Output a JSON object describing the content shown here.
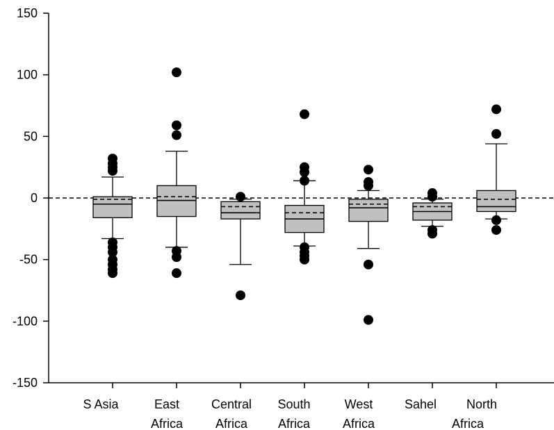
{
  "chart_data": {
    "type": "boxplot",
    "title": "",
    "xlabel": "",
    "ylabel": "",
    "ylim": [
      -150,
      150
    ],
    "yticks": [
      150,
      100,
      50,
      0,
      -50,
      -100,
      -150
    ],
    "ytick_labels": [
      "150",
      "100",
      "50",
      "0",
      "-50",
      "-100",
      "-150"
    ],
    "reference_line": {
      "y": 0,
      "style": "dashed"
    },
    "box_fill_color": "#c0c0c0",
    "outlier_color": "#000000",
    "categories": [
      {
        "lines": [
          "S Asia"
        ],
        "whisker_low": -33,
        "q1": -16,
        "median": -5,
        "mean": -1,
        "q3": 1,
        "whisker_high": 17,
        "outliers": [
          32,
          28,
          25,
          22,
          -36,
          -40,
          -44,
          -50,
          -54,
          -58,
          -61
        ]
      },
      {
        "lines": [
          "East",
          "Africa"
        ],
        "whisker_low": -40,
        "q1": -15,
        "median": -2,
        "mean": 1,
        "q3": 10,
        "whisker_high": 38,
        "outliers": [
          102,
          59,
          51,
          -43,
          -48,
          -61
        ]
      },
      {
        "lines": [
          "Central",
          "Africa"
        ],
        "whisker_low": -54,
        "q1": -17,
        "median": -12,
        "mean": -7,
        "q3": -3,
        "whisker_high": -1,
        "outliers": [
          1,
          -79
        ]
      },
      {
        "lines": [
          "South",
          "Africa"
        ],
        "whisker_low": -39,
        "q1": -28,
        "median": -17,
        "mean": -12,
        "q3": -6,
        "whisker_high": 14,
        "outliers": [
          68,
          25,
          21,
          14,
          -40,
          -44,
          -47,
          -50
        ]
      },
      {
        "lines": [
          "West",
          "Africa"
        ],
        "whisker_low": -41,
        "q1": -19,
        "median": -8,
        "mean": -5,
        "q3": -1,
        "whisker_high": 6,
        "outliers": [
          23,
          13,
          10,
          -54,
          -99
        ]
      },
      {
        "lines": [
          "Sahel"
        ],
        "whisker_low": -23,
        "q1": -18,
        "median": -11,
        "mean": -7,
        "q3": -4,
        "whisker_high": -1,
        "outliers": [
          4,
          1,
          -26,
          -29
        ]
      },
      {
        "lines": [
          "North",
          "Africa"
        ],
        "whisker_low": -17,
        "q1": -11,
        "median": -7,
        "mean": -1,
        "q3": 6,
        "whisker_high": 44,
        "outliers": [
          72,
          52,
          -18,
          -26
        ]
      }
    ]
  }
}
